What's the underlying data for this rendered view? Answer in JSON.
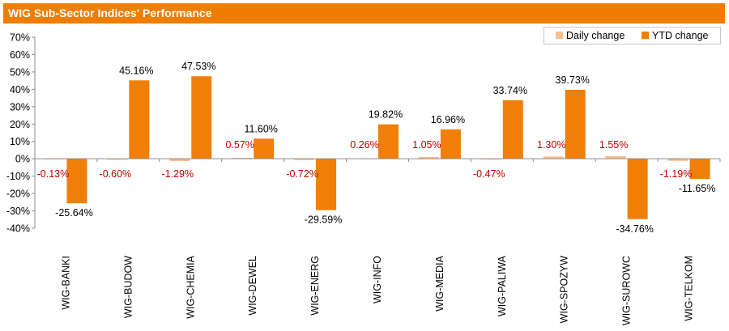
{
  "header": {
    "title": "WIG Sub-Sector Indices' Performance"
  },
  "legend": {
    "daily_label": "Daily change",
    "ytd_label": "YTD change"
  },
  "colors": {
    "title_bg": "#ef7d00",
    "daily": "#f8be8c",
    "ytd": "#f07f09",
    "daily_label": "#c00000",
    "ytd_label": "#000000"
  },
  "chart_data": {
    "type": "bar",
    "title": "WIG Sub-Sector Indices' Performance",
    "categories": [
      "WIG-BANKI",
      "WIG-BUDOW",
      "WIG-CHEMIA",
      "WIG-DEWEL",
      "WIG-ENERG",
      "WIG-INFO",
      "WIG-MEDIA",
      "WIG-PALIWA",
      "WIG-SPOZYW",
      "WIG-SUROWC",
      "WIG-TELKOM"
    ],
    "series": [
      {
        "name": "Daily change",
        "values": [
          -0.13,
          -0.6,
          -1.29,
          0.57,
          -0.72,
          0.26,
          1.05,
          -0.47,
          1.3,
          1.55,
          -1.19
        ],
        "labels": [
          "-0.13%",
          "-0.60%",
          "-1.29%",
          "0.57%",
          "-0.72%",
          "0.26%",
          "1.05%",
          "-0.47%",
          "1.30%",
          "1.55%",
          "-1.19%"
        ]
      },
      {
        "name": "YTD change",
        "values": [
          -25.64,
          45.16,
          47.53,
          11.6,
          -29.59,
          19.82,
          16.96,
          33.74,
          39.73,
          -34.76,
          -11.65
        ],
        "labels": [
          "-25.64%",
          "45.16%",
          "47.53%",
          "11.60%",
          "-29.59%",
          "19.82%",
          "16.96%",
          "33.74%",
          "39.73%",
          "-34.76%",
          "-11.65%"
        ]
      }
    ],
    "ylim": [
      -40,
      70
    ],
    "yticks": [
      -40,
      -30,
      -20,
      -10,
      0,
      10,
      20,
      30,
      40,
      50,
      60,
      70
    ],
    "ytick_labels": [
      "-40%",
      "-30%",
      "-20%",
      "-10%",
      "0%",
      "10%",
      "20%",
      "30%",
      "40%",
      "50%",
      "60%",
      "70%"
    ],
    "xlabel": "",
    "ylabel": "",
    "grid": false,
    "legend_position": "top-right"
  }
}
